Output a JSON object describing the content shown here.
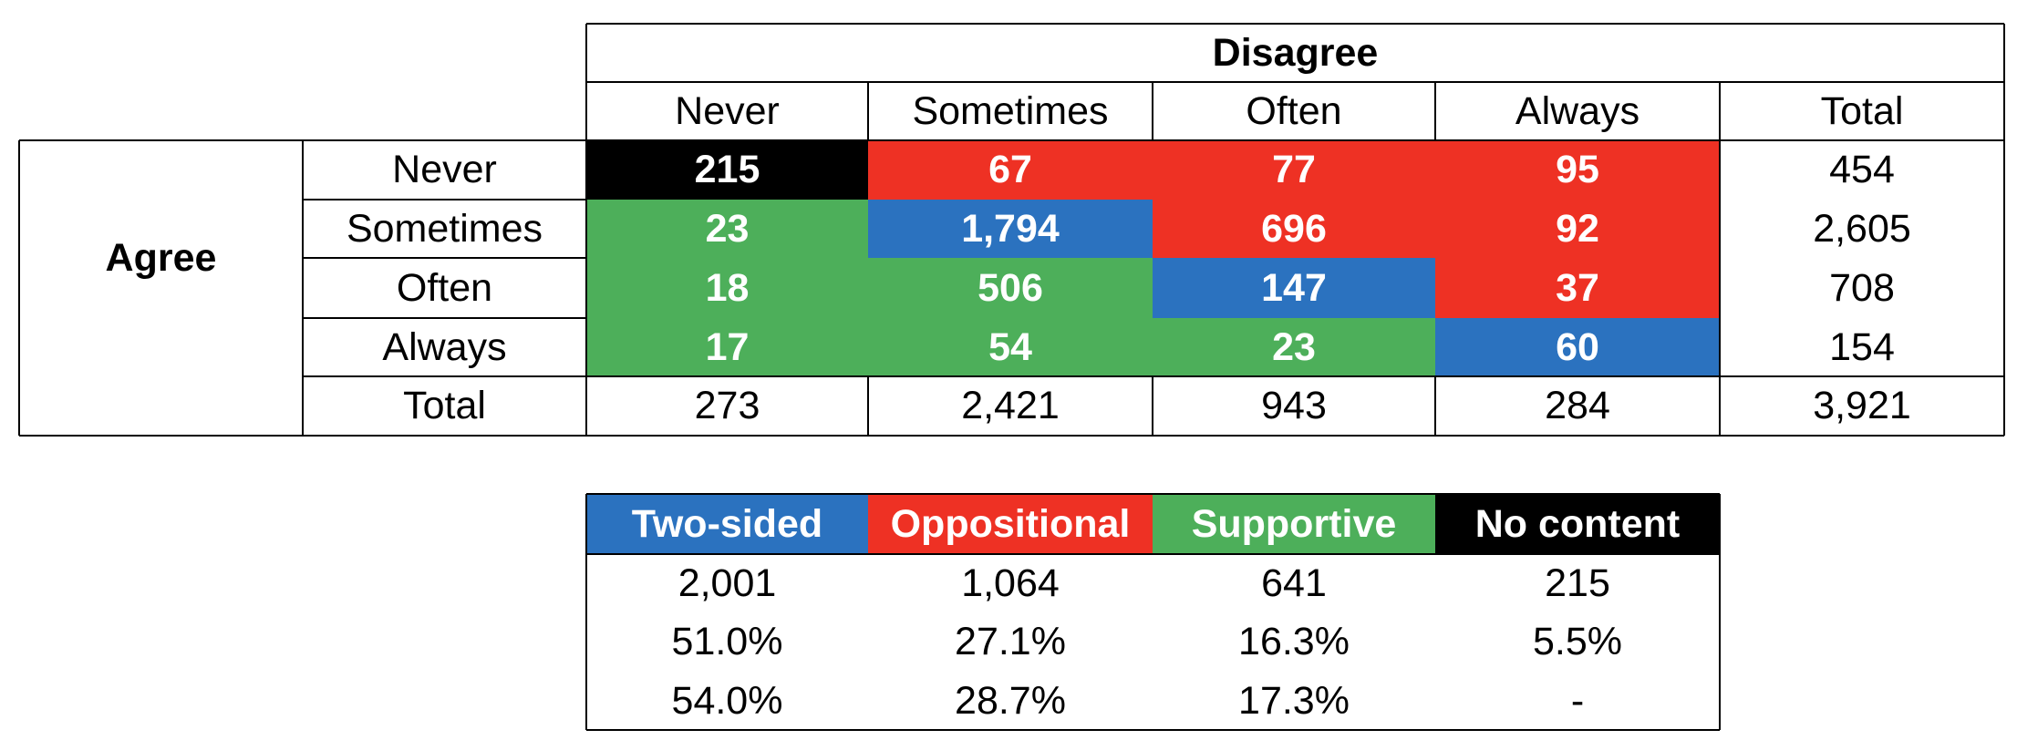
{
  "chart_data": [
    {
      "type": "table",
      "column_group_label": "Disagree",
      "row_group_label": "Agree",
      "columns": [
        "Never",
        "Sometimes",
        "Often",
        "Always",
        "Total"
      ],
      "rows": [
        {
          "label": "Never",
          "values": [
            "215",
            "67",
            "77",
            "95"
          ],
          "total": "454",
          "categories": [
            "no-content",
            "oppositional",
            "oppositional",
            "oppositional"
          ]
        },
        {
          "label": "Sometimes",
          "values": [
            "23",
            "1,794",
            "696",
            "92"
          ],
          "total": "2,605",
          "categories": [
            "supportive",
            "two-sided",
            "oppositional",
            "oppositional"
          ]
        },
        {
          "label": "Often",
          "values": [
            "18",
            "506",
            "147",
            "37"
          ],
          "total": "708",
          "categories": [
            "supportive",
            "supportive",
            "two-sided",
            "oppositional"
          ]
        },
        {
          "label": "Always",
          "values": [
            "17",
            "54",
            "23",
            "60"
          ],
          "total": "154",
          "categories": [
            "supportive",
            "supportive",
            "supportive",
            "two-sided"
          ]
        }
      ],
      "totals_row": {
        "label": "Total",
        "values": [
          "273",
          "2,421",
          "943",
          "284"
        ],
        "total": "3,921"
      }
    },
    {
      "type": "table",
      "headers": [
        {
          "label": "Two-sided",
          "category": "two-sided"
        },
        {
          "label": "Oppositional",
          "category": "oppositional"
        },
        {
          "label": "Supportive",
          "category": "supportive"
        },
        {
          "label": "No content",
          "category": "no-content"
        }
      ],
      "rows": [
        [
          "2,001",
          "1,064",
          "641",
          "215"
        ],
        [
          "51.0%",
          "27.1%",
          "16.3%",
          "5.5%"
        ],
        [
          "54.0%",
          "28.7%",
          "17.3%",
          "-"
        ]
      ]
    }
  ],
  "colors": {
    "two-sided": "#2b72bf",
    "oppositional": "#ee3124",
    "supportive": "#4daf5a",
    "no-content": "#000000"
  }
}
